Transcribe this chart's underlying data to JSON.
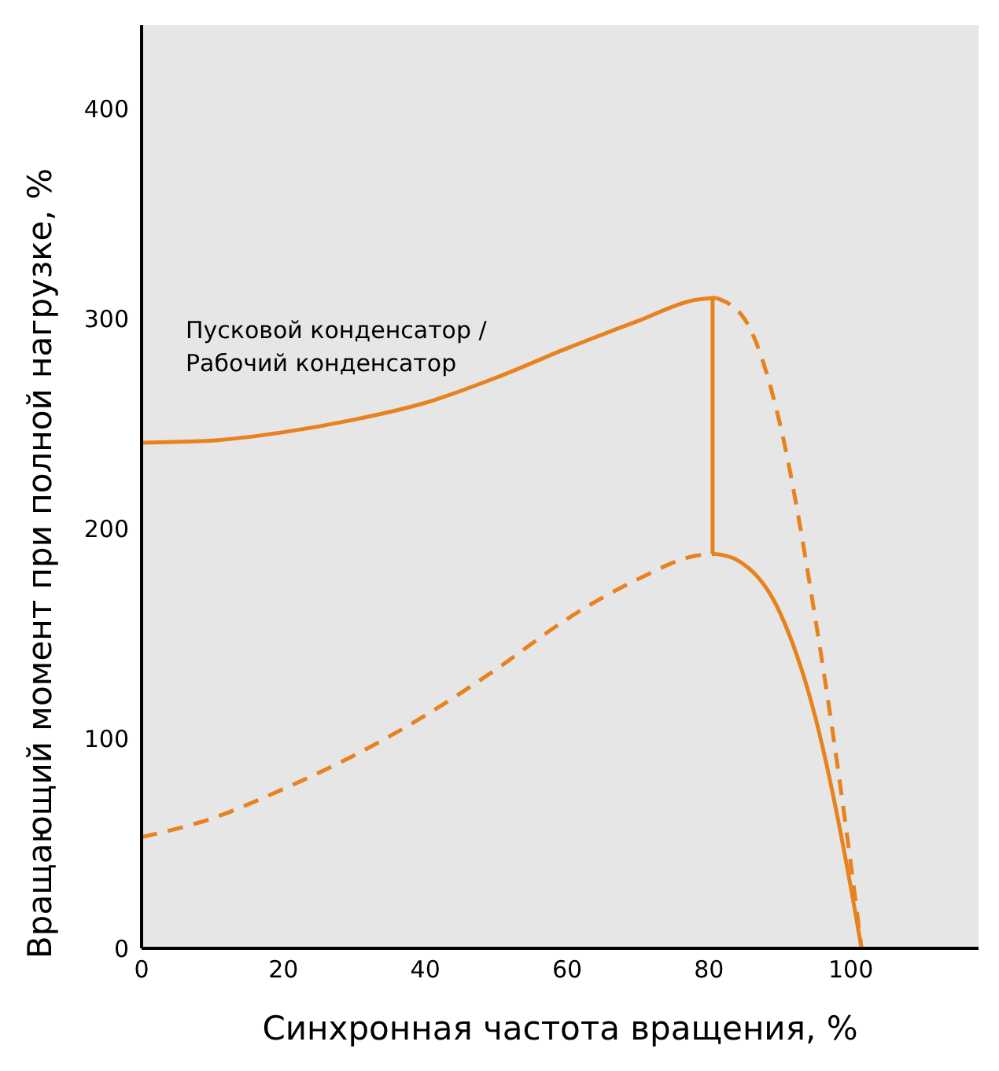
{
  "chart_data": {
    "type": "line",
    "xlabel": "Синхронная частота вращения, %",
    "ylabel": "Вращающий момент при полной нагрузке, %",
    "xlim": [
      0,
      118
    ],
    "xticks": [
      0,
      20,
      40,
      60,
      80,
      100
    ],
    "ylim": [
      0,
      440
    ],
    "yticks": [
      0,
      100,
      200,
      300,
      400
    ],
    "grid": false,
    "legend": false,
    "marker": "none",
    "annotations": [
      "Пусковой конденсатор /\nРабочий конденсатор"
    ],
    "series": [
      {
        "color": "#e8821e",
        "line_style": "solid",
        "x": [
          0,
          10,
          20,
          30,
          40,
          50,
          60,
          70,
          78,
          81
        ],
        "values": [
          241,
          242,
          246,
          252,
          260,
          272,
          286,
          299,
          309,
          310
        ]
      },
      {
        "color": "#e8821e",
        "line_style": "dashed",
        "x": [
          0,
          10,
          20,
          30,
          40,
          50,
          60,
          70,
          78,
          81
        ],
        "values": [
          53,
          62,
          76,
          92,
          111,
          133,
          157,
          176,
          187,
          188
        ]
      },
      {
        "color": "#e8821e",
        "line_style": "solid",
        "x": [
          80.5,
          80.5
        ],
        "values": [
          310,
          188
        ]
      },
      {
        "color": "#e8821e",
        "line_style": "dashed",
        "x": [
          81,
          85,
          90,
          95,
          100,
          101.5
        ],
        "values": [
          310,
          300,
          250,
          157,
          40,
          0
        ]
      },
      {
        "color": "#e8821e",
        "line_style": "solid",
        "x": [
          81,
          84,
          90,
          95,
          100,
          101.5
        ],
        "values": [
          188,
          185,
          160,
          110,
          29,
          0
        ]
      }
    ]
  }
}
